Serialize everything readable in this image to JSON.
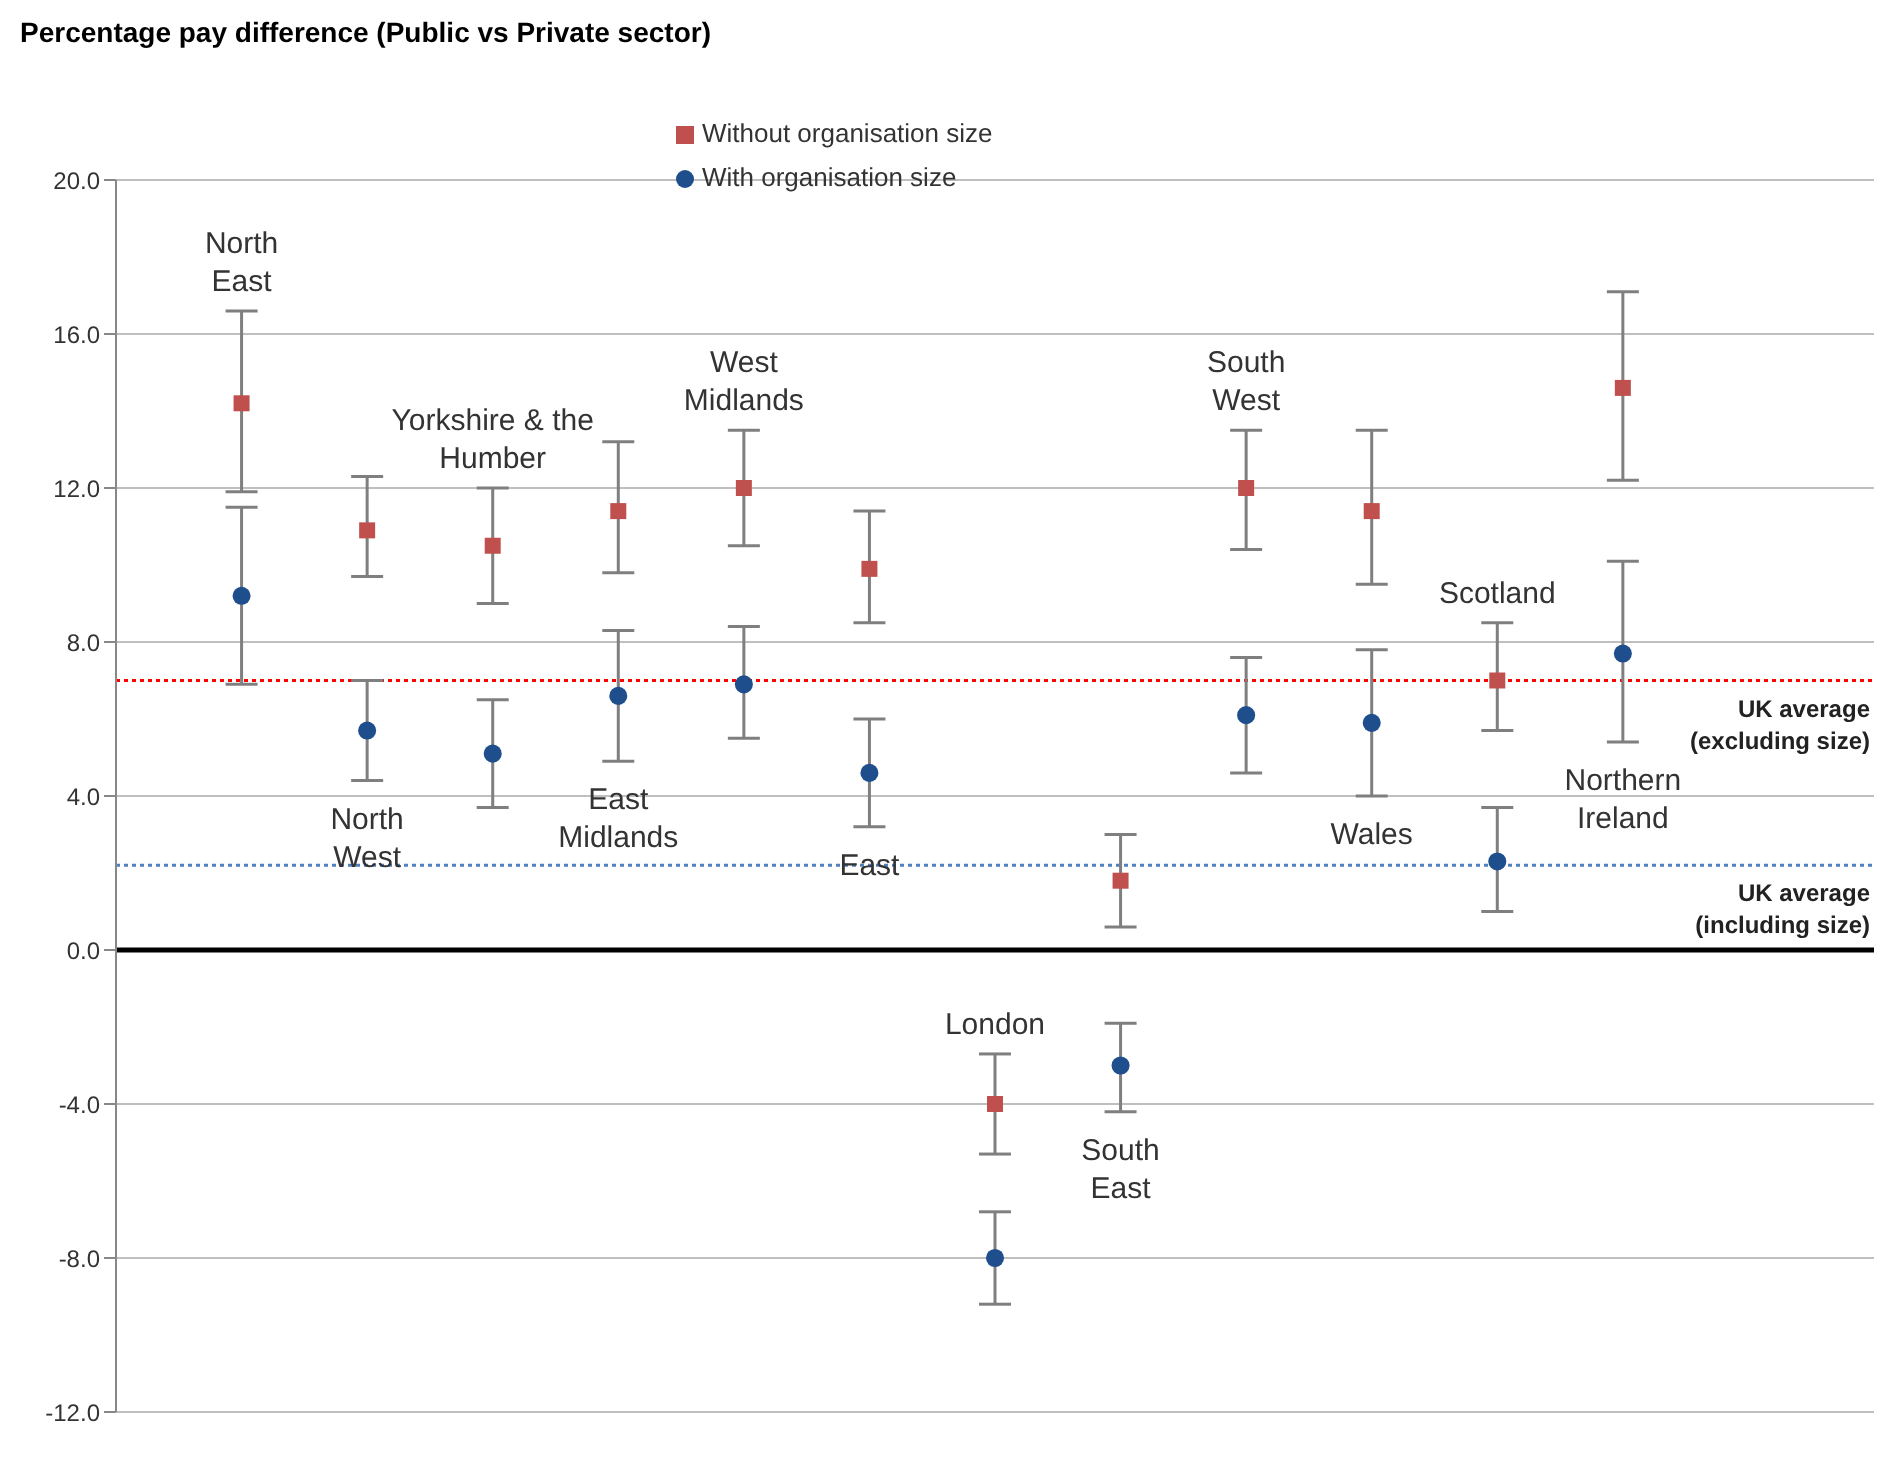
{
  "chart_data": {
    "type": "scatter",
    "title": "Percentage pay difference (Public vs Private sector)",
    "categories": [
      "North East",
      "North West",
      "Yorkshire & the Humber",
      "East Midlands",
      "West Midlands",
      "East",
      "London",
      "South East",
      "South West",
      "Wales",
      "Scotland",
      "Northern Ireland"
    ],
    "series": [
      {
        "name": "Without organisation size",
        "color": "#c0504d",
        "marker": "square",
        "values": [
          14.2,
          10.9,
          10.5,
          11.4,
          12.0,
          9.9,
          -4.0,
          1.8,
          12.0,
          11.4,
          7.0,
          14.6
        ],
        "errors": [
          [
            11.9,
            16.6
          ],
          [
            9.7,
            12.3
          ],
          [
            9.0,
            12.0
          ],
          [
            9.8,
            13.2
          ],
          [
            10.5,
            13.5
          ],
          [
            8.5,
            11.4
          ],
          [
            -5.3,
            -2.7
          ],
          [
            0.6,
            3.0
          ],
          [
            10.4,
            13.5
          ],
          [
            9.5,
            13.5
          ],
          [
            5.7,
            8.5
          ],
          [
            12.2,
            17.1
          ]
        ]
      },
      {
        "name": "With organisation size",
        "color": "#1f4e8c",
        "marker": "circle",
        "values": [
          9.2,
          5.7,
          5.1,
          6.6,
          6.9,
          4.6,
          -8.0,
          -3.0,
          6.1,
          5.9,
          2.3,
          7.7
        ],
        "errors": [
          [
            6.9,
            11.5
          ],
          [
            4.4,
            7.0
          ],
          [
            3.7,
            6.5
          ],
          [
            4.9,
            8.3
          ],
          [
            5.5,
            8.4
          ],
          [
            3.2,
            6.0
          ],
          [
            -9.2,
            -6.8
          ],
          [
            -4.2,
            -1.9
          ],
          [
            4.6,
            7.6
          ],
          [
            4.0,
            7.8
          ],
          [
            1.0,
            3.7
          ],
          [
            5.4,
            10.1
          ]
        ]
      }
    ],
    "ylim": [
      -12,
      20
    ],
    "yticks": [
      {
        "value": -12,
        "label": "-12.0"
      },
      {
        "value": -8,
        "label": "-8.0"
      },
      {
        "value": -4,
        "label": "-4.0"
      },
      {
        "value": 0,
        "label": "0.0"
      },
      {
        "value": 4,
        "label": "4.0"
      },
      {
        "value": 8,
        "label": "8.0"
      },
      {
        "value": 12,
        "label": "12.0"
      },
      {
        "value": 16,
        "label": "16.0"
      },
      {
        "value": 20,
        "label": "20.0"
      }
    ],
    "ref_lines": [
      {
        "axis": "y",
        "value": 7.0,
        "label": "UK average (excluding size)",
        "color": "#ff0000",
        "line_style": "dotted"
      },
      {
        "axis": "y",
        "value": 2.2,
        "label": "UK average (including size)",
        "color": "#4f81bd",
        "line_style": "dotted"
      }
    ],
    "grid": "y",
    "legend": "top",
    "tick_labels": "y"
  }
}
